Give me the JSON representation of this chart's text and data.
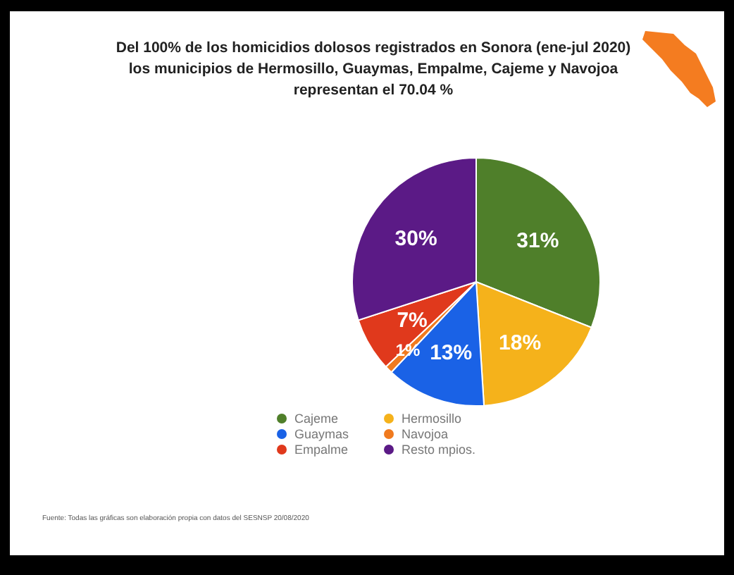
{
  "chart_data": {
    "type": "pie",
    "title": "Del 100% de los homicidios dolosos registrados en Sonora (ene-jul 2020) los municipios de Hermosillo, Guaymas, Empalme, Cajeme y Navojoa representan el 70.04 %",
    "categories": [
      "Cajeme",
      "Hermosillo",
      "Guaymas",
      "Navojoa",
      "Empalme",
      "Resto mpios."
    ],
    "values": [
      31,
      18,
      13,
      1,
      7,
      30
    ],
    "value_labels": [
      "31%",
      "18%",
      "13%",
      "1%",
      "7%",
      "30%"
    ],
    "colors": [
      "#4f7f2a",
      "#f5b21b",
      "#1a62e6",
      "#f07a1e",
      "#e0391c",
      "#5b1a86"
    ],
    "legend": "bottom",
    "annotations": [
      "Fuente: Todas las gráficas son elaboración propia con datos del SESNSP 20/08/2020"
    ]
  }
}
